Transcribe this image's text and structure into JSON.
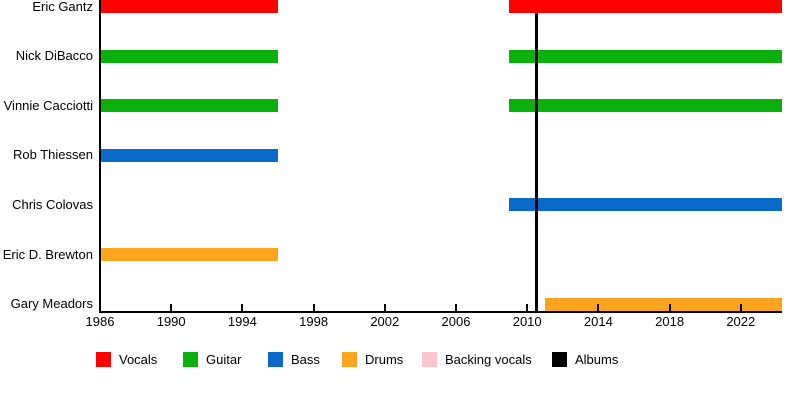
{
  "chart_data": {
    "type": "timeline",
    "title": "",
    "description": "Band members timeline (gantt-style) with vertical album release line",
    "x_axis": {
      "min": 1986,
      "max": 2024.3,
      "tick_years": [
        1986,
        1990,
        1994,
        1998,
        2002,
        2006,
        2010,
        2014,
        2018,
        2022
      ],
      "tick_labels": [
        "1986",
        "1990",
        "1994",
        "1998",
        "2002",
        "2006",
        "2010",
        "2014",
        "2018",
        "2022"
      ]
    },
    "members": [
      {
        "name": "Eric Gantz",
        "role": "Vocals",
        "color": "#fe0000",
        "segments": [
          [
            1986,
            1996
          ],
          [
            2009,
            2024.3
          ]
        ]
      },
      {
        "name": "Nick DiBacco",
        "role": "Guitar",
        "color": "#0cb00c",
        "segments": [
          [
            1986,
            1996
          ],
          [
            2009,
            2024.3
          ]
        ]
      },
      {
        "name": "Vinnie Cacciotti",
        "role": "Guitar",
        "color": "#0cb00c",
        "segments": [
          [
            1986,
            1996
          ],
          [
            2009,
            2024.3
          ]
        ]
      },
      {
        "name": "Rob Thiessen",
        "role": "Bass",
        "color": "#0b6ac9",
        "segments": [
          [
            1986,
            1996
          ]
        ]
      },
      {
        "name": "Chris Colovas",
        "role": "Bass",
        "color": "#0b6ac9",
        "segments": [
          [
            2009,
            2024.3
          ]
        ]
      },
      {
        "name": "Eric D. Brewton",
        "role": "Drums",
        "color": "#ffa41f",
        "segments": [
          [
            1986,
            1996
          ]
        ]
      },
      {
        "name": "Gary Meadors",
        "role": "Drums",
        "color": "#ffa41f",
        "segments": [
          [
            2011,
            2024.3
          ]
        ]
      }
    ],
    "albums": {
      "years": [
        2010.5
      ],
      "color": "#000000"
    },
    "legend": [
      {
        "label": "Vocals",
        "color": "#fe0000"
      },
      {
        "label": "Guitar",
        "color": "#0cb00c"
      },
      {
        "label": "Bass",
        "color": "#0b6ac9"
      },
      {
        "label": "Drums",
        "color": "#ffa41f"
      },
      {
        "label": "Backing vocals",
        "color": "#fbc6cd"
      },
      {
        "label": "Albums",
        "color": "#000000"
      }
    ],
    "axis_color": "#000000",
    "background_color": "#ffffff"
  }
}
